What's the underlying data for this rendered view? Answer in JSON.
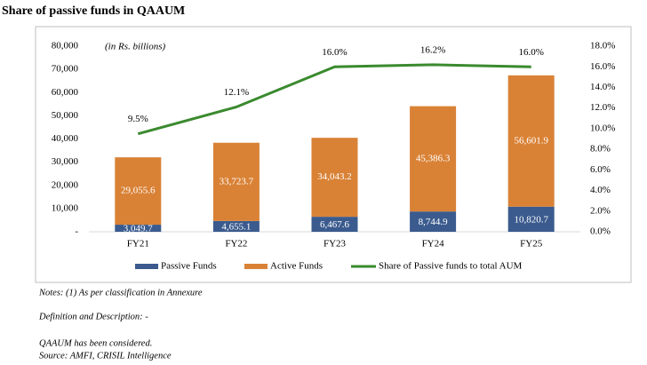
{
  "chart_data": {
    "type": "bar",
    "title": "Share of passive funds in QAAUM",
    "annotation": "(in Rs. billions)",
    "categories": [
      "FY21",
      "FY22",
      "FY23",
      "FY24",
      "FY25"
    ],
    "series": [
      {
        "name": "Passive Funds",
        "color": "#3b5b8e",
        "values": [
          3049.7,
          4655.1,
          6467.6,
          8744.9,
          10820.7
        ],
        "value_labels": [
          "3,049.7",
          "4,655.1",
          "6,467.6",
          "8,744.9",
          "10,820.7"
        ]
      },
      {
        "name": "Active Funds",
        "color": "#d98236",
        "values": [
          29055.6,
          33723.7,
          34043.2,
          45386.3,
          56601.9
        ],
        "value_labels": [
          "29,055.6",
          "33,723.7",
          "34,043.2",
          "45,386.3",
          "56,601.9"
        ]
      },
      {
        "name": "Share of Passive funds to total AUM",
        "type": "line",
        "axis": "y2",
        "color": "#3a8a2e",
        "values": [
          9.5,
          12.1,
          16.0,
          16.2,
          16.0
        ],
        "value_labels": [
          "9.5%",
          "12.1%",
          "16.0%",
          "16.2%",
          "16.0%"
        ]
      }
    ],
    "ylim": [
      0,
      80000
    ],
    "yticks": [
      {
        "value": 0,
        "label": "-"
      },
      {
        "value": 10000,
        "label": "10,000"
      },
      {
        "value": 20000,
        "label": "20,000"
      },
      {
        "value": 30000,
        "label": "30,000"
      },
      {
        "value": 40000,
        "label": "40,000"
      },
      {
        "value": 50000,
        "label": "50,000"
      },
      {
        "value": 60000,
        "label": "60,000"
      },
      {
        "value": 70000,
        "label": "70,000"
      },
      {
        "value": 80000,
        "label": "80,000"
      }
    ],
    "y2lim": [
      0,
      18
    ],
    "y2ticks": [
      {
        "value": 0,
        "label": "0.0%"
      },
      {
        "value": 2,
        "label": "2.0%"
      },
      {
        "value": 4,
        "label": "4.0%"
      },
      {
        "value": 6,
        "label": "6.0%"
      },
      {
        "value": 8,
        "label": "8.0%"
      },
      {
        "value": 10,
        "label": "10.0%"
      },
      {
        "value": 12,
        "label": "12.0%"
      },
      {
        "value": 14,
        "label": "14.0%"
      },
      {
        "value": 16,
        "label": "16.0%"
      },
      {
        "value": 18,
        "label": "18.0%"
      }
    ]
  },
  "notes": [
    "Notes: (1) As per classification in Annexure",
    "Definition and Description: -",
    "QAAUM has been considered.",
    "Source: AMFI, CRISIL Intelligence"
  ]
}
